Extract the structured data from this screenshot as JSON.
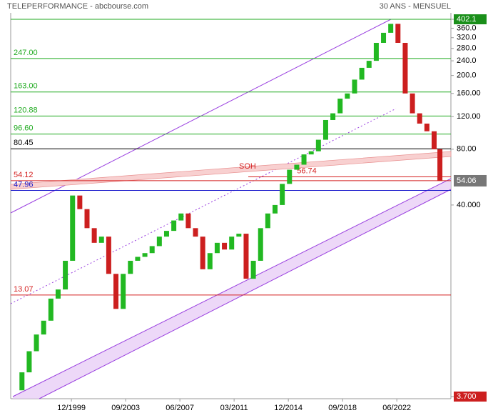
{
  "header": {
    "left": "TELEPERFORMANCE - abcbourse.com",
    "right": "30 ANS - MENSUEL"
  },
  "chart_data": {
    "type": "candlestick",
    "log_scale": true,
    "x": [
      1996.0,
      1996.5,
      1997.0,
      1997.5,
      1998.0,
      1998.5,
      1999.0,
      1999.5,
      2000.0,
      2000.5,
      2001.0,
      2001.5,
      2002.0,
      2002.5,
      2003.0,
      2003.5,
      2004.0,
      2004.5,
      2005.0,
      2005.5,
      2006.0,
      2006.5,
      2007.0,
      2007.5,
      2008.0,
      2008.5,
      2009.0,
      2009.5,
      2010.0,
      2010.5,
      2011.0,
      2011.5,
      2012.0,
      2012.5,
      2013.0,
      2013.5,
      2014.0,
      2014.5,
      2015.0,
      2015.5,
      2016.0,
      2016.5,
      2017.0,
      2017.5,
      2018.0,
      2018.5,
      2019.0,
      2019.5,
      2020.0,
      2020.5,
      2021.0,
      2021.5,
      2022.0,
      2022.5,
      2023.0,
      2023.5,
      2024.0,
      2024.5,
      2025.0,
      2025.4
    ],
    "values": [
      4.0,
      5.0,
      6.5,
      8.0,
      9.5,
      12.5,
      14,
      20,
      45,
      38,
      30,
      25,
      27,
      17,
      11,
      17,
      20,
      21,
      22,
      24,
      27,
      29,
      33,
      36,
      30,
      27,
      18,
      22,
      25,
      23,
      27,
      28,
      16,
      20,
      30,
      36,
      40,
      52,
      62,
      66,
      75,
      78,
      90,
      115,
      125,
      150,
      160,
      190,
      220,
      240,
      300,
      340,
      380,
      300,
      160,
      125,
      110,
      100,
      80,
      54.06
    ],
    "up_color": "#22b822",
    "down_color": "#cc1f1f",
    "xlim": [
      1995.87,
      2026.16
    ],
    "xticks": [
      {
        "value": 1999.92,
        "label": "12/1999"
      },
      {
        "value": 2003.67,
        "label": "09/2003"
      },
      {
        "value": 2007.42,
        "label": "06/2007"
      },
      {
        "value": 2011.17,
        "label": "03/2011"
      },
      {
        "value": 2014.92,
        "label": "12/2014"
      },
      {
        "value": 2018.67,
        "label": "09/2018"
      },
      {
        "value": 2022.42,
        "label": "06/2022"
      }
    ],
    "ylim": [
      3.7,
      402.1
    ],
    "yticks": [
      {
        "value": 402.1,
        "label": "402.1"
      },
      {
        "value": 360,
        "label": "360.0"
      },
      {
        "value": 320,
        "label": "320.0"
      },
      {
        "value": 280,
        "label": "280.0"
      },
      {
        "value": 240,
        "label": "240.0"
      },
      {
        "value": 200,
        "label": "200.0"
      },
      {
        "value": 160,
        "label": "160.00"
      },
      {
        "value": 120,
        "label": "120.00"
      },
      {
        "value": 80,
        "label": "80.00"
      },
      {
        "value": 40,
        "label": "40.000"
      },
      {
        "value": 3.7,
        "label": "3.700"
      }
    ],
    "top_box_color": "#1a8f1a",
    "bottom_box_color": "#cc1f1f",
    "last_price": 54.06,
    "last_price_color": "#777777",
    "levels": [
      {
        "value": 402.1,
        "color": "#1faa1f"
      },
      {
        "value": 247,
        "label": "247.00",
        "color": "#1faa1f"
      },
      {
        "value": 163,
        "label": "163.00",
        "color": "#1faa1f"
      },
      {
        "value": 120.88,
        "label": "120.88",
        "color": "#1faa1f"
      },
      {
        "value": 96.6,
        "label": "96.60",
        "color": "#1faa1f"
      },
      {
        "value": 80.45,
        "label": "80.45",
        "color": "#000000"
      },
      {
        "value": 54.12,
        "label": "54.12",
        "color": "#d42020"
      },
      {
        "value": 47.96,
        "label": "47.96",
        "color": "#1a1acc"
      },
      {
        "value": 13.07,
        "label": "13.07",
        "color": "#d42020"
      }
    ],
    "marker_level": {
      "value": 56.74,
      "label": "56.74",
      "color": "#d42020"
    },
    "annotation": "SOH"
  }
}
